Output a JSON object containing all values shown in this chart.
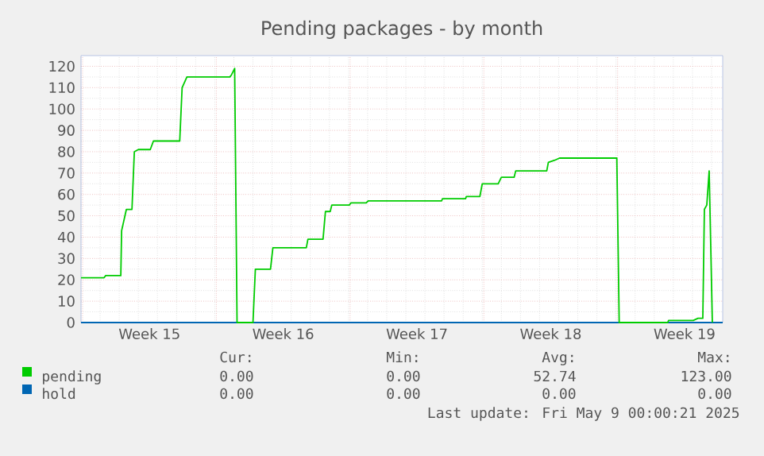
{
  "chart_data": {
    "type": "line",
    "title": "Pending packages - by month",
    "xlim": [
      "2025-04-06T22:00",
      "2025-05-10T12:00"
    ],
    "xticks": [
      {
        "value": "2025-04-07T00:00",
        "label": null
      },
      {
        "value": "2025-04-14T00:00",
        "label": null
      },
      {
        "value": "2025-04-21T00:00",
        "label": null
      },
      {
        "value": "2025-04-28T00:00",
        "label": null
      },
      {
        "value": "2025-05-05T00:00",
        "label": null
      },
      {
        "value": "2025-04-10T12:00",
        "label": "Week 15"
      },
      {
        "value": "2025-04-17T12:00",
        "label": "Week 16"
      },
      {
        "value": "2025-04-24T12:00",
        "label": "Week 17"
      },
      {
        "value": "2025-05-01T12:00",
        "label": "Week 18"
      },
      {
        "value": "2025-05-08T12:00",
        "label": "Week 19"
      }
    ],
    "ylim": [
      0,
      125
    ],
    "yticks": [
      0,
      10,
      20,
      30,
      40,
      50,
      60,
      70,
      80,
      90,
      100,
      110,
      120
    ],
    "grid": true,
    "legend": "bottom",
    "marker": "none",
    "line_style": "solid",
    "series": [
      {
        "name": "pending",
        "color": "#00cc00",
        "x": [
          "2025-04-06T22:00",
          "2025-04-08T03:00",
          "2025-04-08T05:00",
          "2025-04-09T00:00",
          "2025-04-09T01:00",
          "2025-04-09T07:00",
          "2025-04-09T14:00",
          "2025-04-09T17:00",
          "2025-04-09T22:00",
          "2025-04-10T13:00",
          "2025-04-10T17:00",
          "2025-04-12T02:00",
          "2025-04-12T05:00",
          "2025-04-12T11:00",
          "2025-04-14T17:00",
          "2025-04-14T19:00",
          "2025-04-14T23:00",
          "2025-04-15T02:00",
          "2025-04-15T22:00",
          "2025-04-16T01:00",
          "2025-04-16T20:00",
          "2025-04-16T23:00",
          "2025-04-18T17:00",
          "2025-04-18T19:00",
          "2025-04-19T14:00",
          "2025-04-19T17:00",
          "2025-04-19T23:00",
          "2025-04-20T01:00",
          "2025-04-20T23:00",
          "2025-04-21T01:00",
          "2025-04-21T20:00",
          "2025-04-21T23:00",
          "2025-04-25T19:00",
          "2025-04-25T20:00",
          "2025-04-27T01:00",
          "2025-04-27T02:00",
          "2025-04-27T19:00",
          "2025-04-27T22:00",
          "2025-04-28T18:00",
          "2025-04-28T22:00",
          "2025-04-29T14:00",
          "2025-04-29T16:00",
          "2025-05-01T07:00",
          "2025-05-01T09:00",
          "2025-05-01T17:00",
          "2025-05-01T23:00",
          "2025-05-04T23:00",
          "2025-05-05T02:00",
          "2025-05-07T15:00",
          "2025-05-07T16:00",
          "2025-05-08T23:00",
          "2025-05-09T05:00",
          "2025-05-09T11:00",
          "2025-05-09T13:00",
          "2025-05-09T16:00",
          "2025-05-09T19:00",
          "2025-05-09T23:00"
        ],
        "values": [
          21,
          21,
          22,
          22,
          43,
          53,
          53,
          80,
          81,
          81,
          85,
          85,
          110,
          115,
          115,
          116,
          119,
          0,
          0,
          25,
          25,
          35,
          35,
          39,
          39,
          52,
          52,
          55,
          55,
          56,
          56,
          57,
          57,
          58,
          58,
          59,
          59,
          65,
          65,
          68,
          68,
          71,
          71,
          75,
          76,
          77,
          77,
          0,
          0,
          1,
          1,
          2,
          2,
          53,
          55,
          71,
          0
        ]
      },
      {
        "name": "hold",
        "color": "#0066b3",
        "x": [
          "2025-04-06T22:00",
          "2025-05-10T12:00"
        ],
        "values": [
          0,
          0
        ]
      }
    ],
    "annotations": [
      "Cur:",
      "Min:",
      "Avg:",
      "Max:",
      "0.00",
      "0.00",
      "52.74",
      "123.00",
      "0.00",
      "0.00",
      "0.00",
      "0.00",
      "Last update: Fri May  9 00:00:21 2025"
    ]
  }
}
